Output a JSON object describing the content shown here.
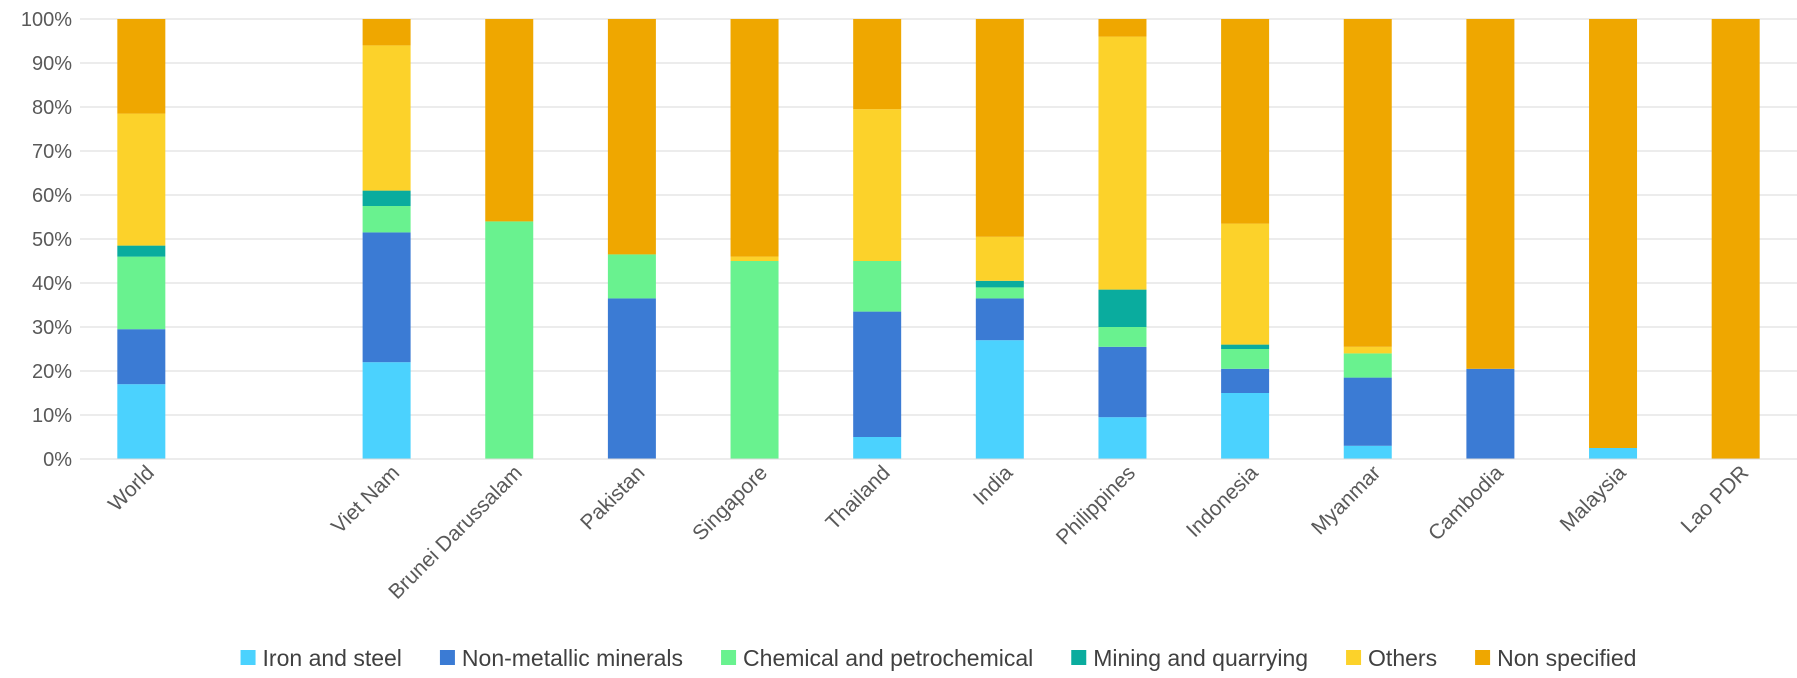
{
  "chart_data": {
    "type": "bar",
    "stacked": true,
    "percent": true,
    "categories": [
      "World",
      "",
      "Viet Nam",
      "Brunei Darussalam",
      "Pakistan",
      "Singapore",
      "Thailand",
      "India",
      "Philippines",
      "Indonesia",
      "Myanmar",
      "Cambodia",
      "Malaysia",
      "Lao PDR"
    ],
    "ylim": [
      0,
      100
    ],
    "yticks": [
      0,
      10,
      20,
      30,
      40,
      50,
      60,
      70,
      80,
      90,
      100
    ],
    "ytick_labels": [
      "0%",
      "10%",
      "20%",
      "30%",
      "40%",
      "50%",
      "60%",
      "70%",
      "80%",
      "90%",
      "100%"
    ],
    "grid": true,
    "legend_position": "bottom",
    "series": [
      {
        "name": "Iron and steel",
        "color": "#4BD2FE",
        "values": [
          17,
          null,
          22,
          0,
          0,
          0,
          5,
          27,
          9.5,
          15,
          3,
          0,
          2.5,
          0
        ]
      },
      {
        "name": "Non-metallic minerals",
        "color": "#3B7BD4",
        "values": [
          12.5,
          null,
          29.5,
          0,
          36.5,
          0,
          28.5,
          9.5,
          16,
          5.5,
          15.5,
          20.5,
          0,
          0
        ]
      },
      {
        "name": "Chemical and petrochemical",
        "color": "#69F28F",
        "values": [
          16.5,
          null,
          6,
          54,
          10,
          45,
          11.5,
          2.5,
          4.5,
          4.5,
          5.5,
          0,
          0,
          0
        ]
      },
      {
        "name": "Mining and quarrying",
        "color": "#0AAC9E",
        "values": [
          2.5,
          null,
          3.5,
          0,
          0,
          0,
          0,
          1.5,
          8.5,
          1,
          0,
          0,
          0,
          0
        ]
      },
      {
        "name": "Others",
        "color": "#FCD22A",
        "values": [
          30,
          null,
          33,
          0,
          0,
          1,
          34.5,
          10,
          57.5,
          27.5,
          1.5,
          0,
          0,
          0
        ]
      },
      {
        "name": "Non specified",
        "color": "#EFA700",
        "values": [
          21.5,
          null,
          6,
          46,
          53.5,
          54,
          20.5,
          49.5,
          4,
          46.5,
          74.5,
          79.5,
          97.5,
          100
        ]
      }
    ]
  }
}
